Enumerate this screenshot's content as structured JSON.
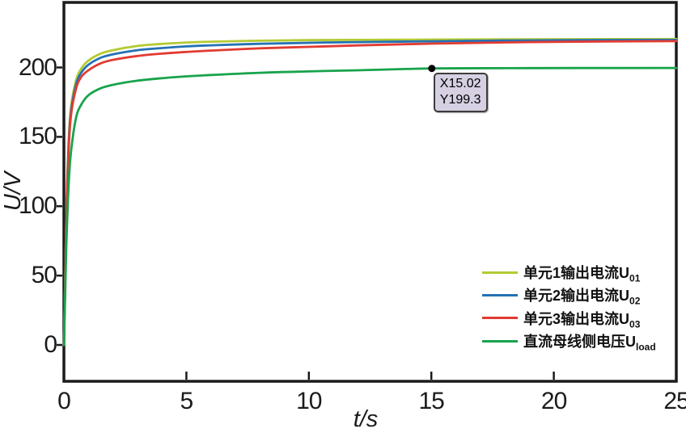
{
  "chart_data": {
    "type": "line",
    "title": "",
    "xlabel": "t/s",
    "ylabel": "U/V",
    "xlim": [
      0,
      25
    ],
    "ylim": [
      -26.2,
      246.9
    ],
    "x_ticks": [
      0,
      5,
      10,
      15,
      20,
      25
    ],
    "y_ticks": [
      0,
      50,
      100,
      150,
      200
    ],
    "grid": false,
    "legend_position": "lower right",
    "background_color": "#ffffff",
    "axis_color": "#1b1b1b",
    "x": [
      0,
      0.05,
      0.1,
      0.2,
      0.3,
      0.5,
      0.7,
      1,
      1.5,
      2,
      3,
      4,
      5,
      6,
      8,
      10,
      12,
      15,
      18,
      21,
      25
    ],
    "series": [
      {
        "name": "单元1输出电流U",
        "name_sub": "01",
        "color": "#b4ca33",
        "values": [
          0,
          45,
          95,
          150,
          173,
          191,
          199,
          205,
          210,
          212.5,
          215.5,
          217,
          218,
          218.6,
          219.3,
          219.7,
          219.9,
          220.1,
          220.3,
          220.4,
          220.5
        ]
      },
      {
        "name": "单元2输出电流U",
        "name_sub": "02",
        "color": "#2471b4",
        "values": [
          0,
          44,
          93,
          147,
          170,
          188,
          196,
          202,
          207,
          209.5,
          212.5,
          214,
          215.2,
          216,
          217.1,
          217.8,
          218.3,
          218.9,
          219.4,
          219.7,
          219.9
        ]
      },
      {
        "name": "单元3输出电流U",
        "name_sub": "03",
        "color": "#e23b31",
        "values": [
          0,
          43,
          91,
          144,
          167,
          185,
          193,
          198,
          203,
          205.5,
          208.3,
          210,
          211.2,
          212.2,
          213.8,
          214.9,
          215.9,
          217.2,
          218.1,
          218.6,
          219
        ]
      },
      {
        "name": "直流母线侧电压U",
        "name_sub": "load",
        "color": "#18a34c",
        "values": [
          0,
          35,
          72,
          118,
          141,
          164,
          173,
          180,
          185,
          187.5,
          190.5,
          192.3,
          193.6,
          194.6,
          196.2,
          197.2,
          198,
          199.3,
          199.5,
          199.6,
          199.7
        ]
      }
    ],
    "datatip": {
      "x": 15.02,
      "y": 199.3,
      "x_text": "X15.02",
      "y_text": "Y199.3",
      "marker_color": "#000000",
      "bg_color": "#d6d0e2",
      "border_color": "#3c3c3c"
    }
  }
}
